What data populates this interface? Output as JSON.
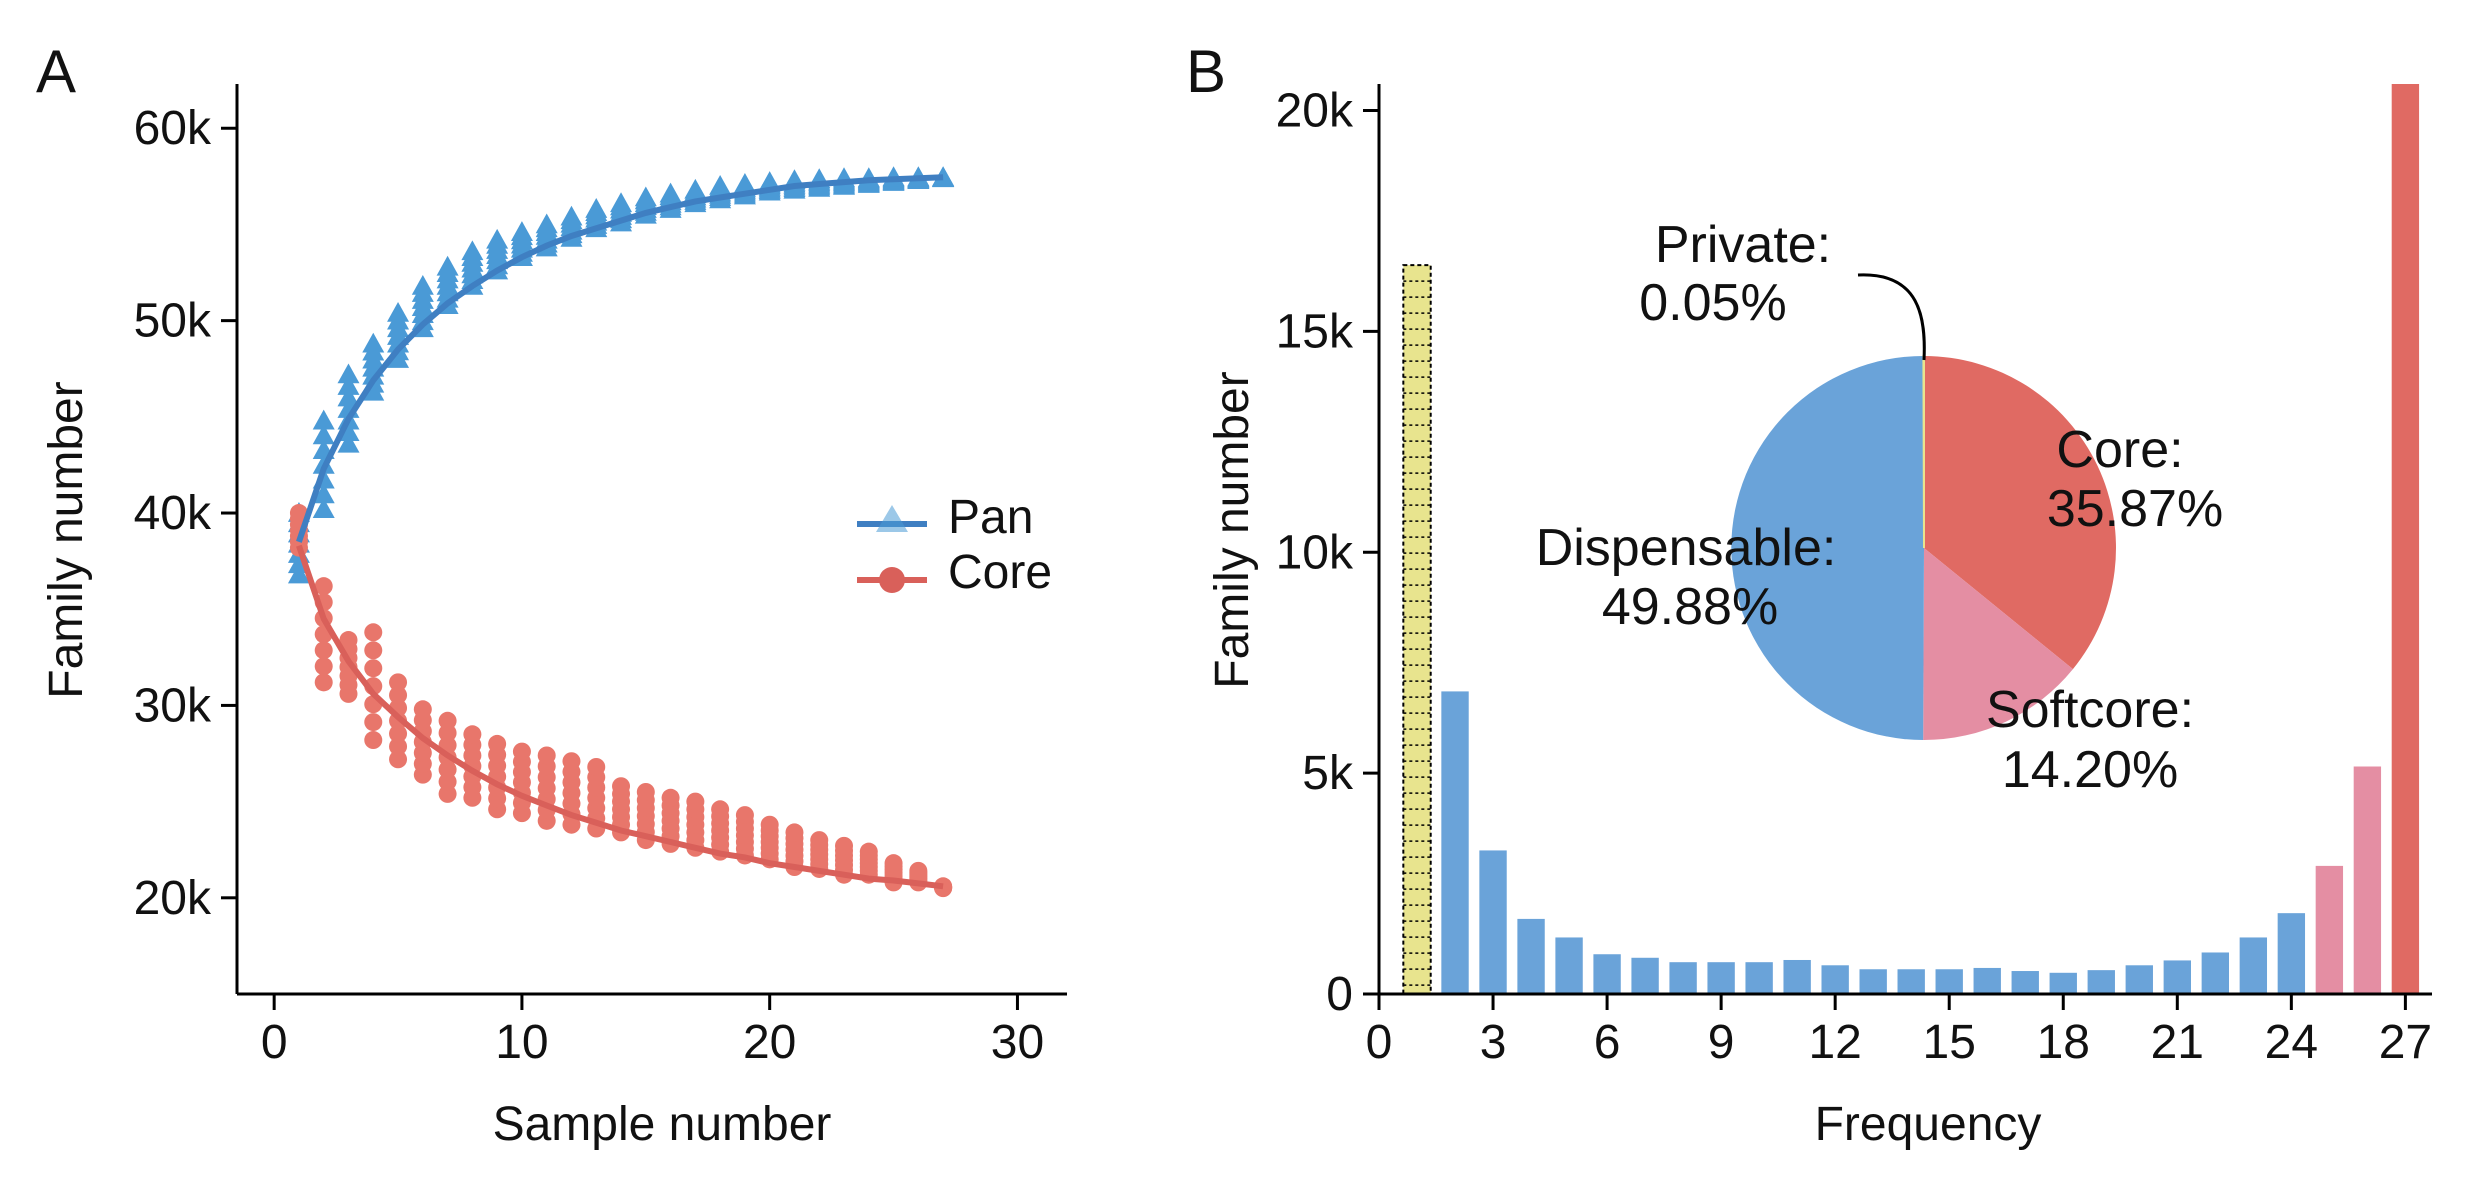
{
  "panel_a": {
    "letter": "A",
    "colors": {
      "pan": "#4a9ad6",
      "pan_fit": "#3f7fc2",
      "core": "#e8766b",
      "core_fit": "#d9605a"
    },
    "chart_data": {
      "type": "scatter",
      "xlabel": "Sample number",
      "ylabel": "Family number",
      "xlim": [
        -1.5,
        32
      ],
      "ylim": [
        15000,
        62300
      ],
      "xticks": [
        0,
        10,
        20,
        30
      ],
      "xtick_labels": [
        "0",
        "10",
        "20",
        "30"
      ],
      "yticks": [
        20000,
        30000,
        40000,
        50000,
        60000
      ],
      "ytick_labels": [
        "20k",
        "30k",
        "40k",
        "50k",
        "60k"
      ],
      "legend": {
        "placement": "right",
        "entries": [
          "Pan",
          "Core"
        ]
      },
      "series": [
        {
          "name": "Pan",
          "marker": "triangle",
          "x": [
            1,
            2,
            3,
            4,
            5,
            6,
            7,
            8,
            9,
            10,
            11,
            12,
            13,
            14,
            15,
            16,
            17,
            18,
            19,
            20,
            21,
            22,
            23,
            24,
            25,
            26,
            27
          ],
          "y_min": [
            36800,
            40200,
            43600,
            46300,
            48000,
            49600,
            50800,
            51800,
            52600,
            53300,
            53800,
            54300,
            54800,
            55100,
            55500,
            55800,
            56100,
            56300,
            56500,
            56700,
            56800,
            56900,
            57000,
            57100,
            57200,
            57300,
            57400
          ],
          "y_max": [
            40000,
            44800,
            47200,
            48800,
            50400,
            51800,
            52800,
            53600,
            54200,
            54600,
            55000,
            55400,
            55800,
            56100,
            56400,
            56600,
            56800,
            57000,
            57100,
            57200,
            57300,
            57350,
            57400,
            57400,
            57450,
            57450,
            57450
          ],
          "fit": [
            38500,
            42300,
            44900,
            46900,
            48500,
            49800,
            50900,
            51800,
            52600,
            53300,
            53900,
            54400,
            54800,
            55200,
            55600,
            55900,
            56200,
            56400,
            56600,
            56800,
            57000,
            57100,
            57200,
            57300,
            57350,
            57400,
            57450
          ]
        },
        {
          "name": "Core",
          "marker": "circle",
          "x": [
            1,
            2,
            3,
            4,
            5,
            6,
            7,
            8,
            9,
            10,
            11,
            12,
            13,
            14,
            15,
            16,
            17,
            18,
            19,
            20,
            21,
            22,
            23,
            24,
            25,
            26,
            27
          ],
          "y_min": [
            38200,
            31200,
            30600,
            28200,
            27200,
            26400,
            25400,
            25200,
            24600,
            24400,
            24000,
            23800,
            23600,
            23400,
            23000,
            22800,
            22600,
            22400,
            22200,
            22000,
            21600,
            21500,
            21200,
            21200,
            20800,
            20800,
            20500
          ],
          "y_max": [
            40000,
            36200,
            33400,
            33800,
            31200,
            29800,
            29200,
            28500,
            28000,
            27600,
            27400,
            27100,
            26800,
            25800,
            25500,
            25200,
            25000,
            24600,
            24300,
            23800,
            23400,
            23000,
            22700,
            22400,
            21800,
            21400,
            20600
          ],
          "fit": [
            38300,
            34500,
            32300,
            30600,
            29400,
            28300,
            27400,
            26600,
            25900,
            25300,
            24800,
            24300,
            23900,
            23500,
            23200,
            22900,
            22600,
            22300,
            22100,
            21800,
            21600,
            21400,
            21200,
            21000,
            20900,
            20750,
            20600
          ]
        }
      ]
    }
  },
  "panel_b": {
    "letter": "B",
    "colors": {
      "dispensable": "#6aa3d9",
      "softcore": "#e48ea3",
      "core": "#e06a63",
      "private": "#e8e48e"
    },
    "chart_data": {
      "type": "bar",
      "xlabel": "Frequency",
      "ylabel": "Family number",
      "xlim": [
        0,
        27.7
      ],
      "ylim": [
        0,
        20600
      ],
      "xticks": [
        0,
        3,
        6,
        9,
        12,
        15,
        18,
        21,
        24,
        27
      ],
      "xtick_labels": [
        "0",
        "3",
        "6",
        "9",
        "12",
        "15",
        "18",
        "21",
        "24",
        "27"
      ],
      "yticks": [
        0,
        5000,
        10000,
        15000,
        20000
      ],
      "ytick_labels": [
        "0",
        "5k",
        "10k",
        "15k",
        "20k"
      ],
      "categories": [
        1,
        2,
        3,
        4,
        5,
        6,
        7,
        8,
        9,
        10,
        11,
        12,
        13,
        14,
        15,
        16,
        17,
        18,
        19,
        20,
        21,
        22,
        23,
        24,
        25,
        26,
        27
      ],
      "values": [
        16500,
        6850,
        3250,
        1700,
        1280,
        900,
        820,
        720,
        720,
        720,
        770,
        650,
        560,
        560,
        560,
        590,
        520,
        480,
        540,
        650,
        760,
        940,
        1280,
        1830,
        2900,
        5150,
        20600
      ],
      "groups": [
        "private",
        "dispensable",
        "dispensable",
        "dispensable",
        "dispensable",
        "dispensable",
        "dispensable",
        "dispensable",
        "dispensable",
        "dispensable",
        "dispensable",
        "dispensable",
        "dispensable",
        "dispensable",
        "dispensable",
        "dispensable",
        "dispensable",
        "dispensable",
        "dispensable",
        "dispensable",
        "dispensable",
        "dispensable",
        "dispensable",
        "dispensable",
        "softcore",
        "softcore",
        "core"
      ],
      "inset_pie": {
        "type": "pie",
        "slices": [
          {
            "key": "core",
            "name": "Core:",
            "pct_label": "35.87%",
            "value": 35.87
          },
          {
            "key": "softcore",
            "name": "Softcore:",
            "pct_label": "14.20%",
            "value": 14.2
          },
          {
            "key": "dispensable",
            "name": "Dispensable:",
            "pct_label": "49.88%",
            "value": 49.88
          },
          {
            "key": "private",
            "name": "Private:",
            "pct_label": "0.05%",
            "value": 0.05
          }
        ]
      }
    }
  }
}
